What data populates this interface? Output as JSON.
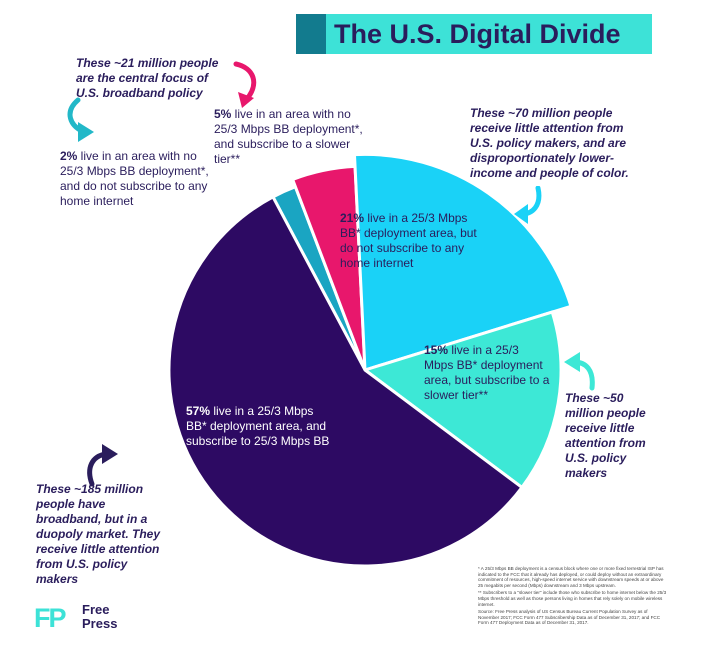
{
  "title": "The U.S. Digital Divide",
  "colors": {
    "title_band": "#3de2d7",
    "title_strip": "#127b8e",
    "title_text": "#2a1d5c",
    "annotation_text": "#2a1d5c",
    "arrow_pink": "#e8176c",
    "arrow_teal": "#22b8c8",
    "arrow_navy": "#2a1d5c",
    "logo_teal": "#3de2d7"
  },
  "chart_data": {
    "type": "pie",
    "title": "The U.S. Digital Divide",
    "slices": [
      {
        "key": "no_dep_no_sub",
        "value": 2,
        "color": "#1aa5c2",
        "pct": "2%",
        "text": " live in an area with no 25/3 Mbps BB deployment*, and do not subscribe to any home internet"
      },
      {
        "key": "no_dep_slower",
        "value": 5,
        "color": "#e8176c",
        "pct": "5%",
        "text": " live in an area with no 25/3 Mbps BB deployment*, and subscribe to a slower tier**"
      },
      {
        "key": "dep_no_sub",
        "value": 21,
        "color": "#1ad2f7",
        "pct": "21%",
        "text": " live in a 25/3 Mbps BB* deployment area, but do not subscribe to any home internet"
      },
      {
        "key": "dep_slower",
        "value": 15,
        "color": "#3de8d6",
        "pct": "15%",
        "text": " live in a 25/3 Mbps BB* deployment area, but subscribe to a slower tier**"
      },
      {
        "key": "dep_sub",
        "value": 57,
        "color": "#2d0a63",
        "pct": "57%",
        "text": " live in a 25/3 Mbps BB* deployment area, and subscribe to 25/3 Mbps BB"
      }
    ]
  },
  "annotations": {
    "central": "These ~21 million people are the central focus of U.S. broadband policy",
    "seventy": "These ~70 million people receive little attention from U.S. policy makers, and are disproportionately lower-income and people of color.",
    "fifty": "These ~50 million people receive little attention from U.S. policy makers",
    "one85": "These ~185 million people have broadband, but in a duopoly market. They receive little attention from U.S. policy makers"
  },
  "footnote": {
    "line1": "* A 25/3 Mbps BB deployment is a census block where one or more fixed terrestrial ISP has indicated to the FCC that it already has deployed, or could deploy without an extraordinary commitment of resources, high-speed internet service with downstream speeds at or above 25 megabits per second (Mbps) downstream and 3 Mbps upstream.",
    "line2": "** Subscribers to a \"slower tier\" include those who subscribe to home internet below the 25/3 Mbps threshold as well as those persons living in homes that rely solely on mobile wireless internet.",
    "line3": "Source: Free Press analysis of US Census Bureau Current Population Survey as of November 2017; FCC Form 477 Subscribership Data as of December 31, 2017; and FCC Form 477 Deployment Data as of December 31, 2017."
  },
  "logo": {
    "mark": "FP",
    "line1": "Free",
    "line2": "Press"
  }
}
